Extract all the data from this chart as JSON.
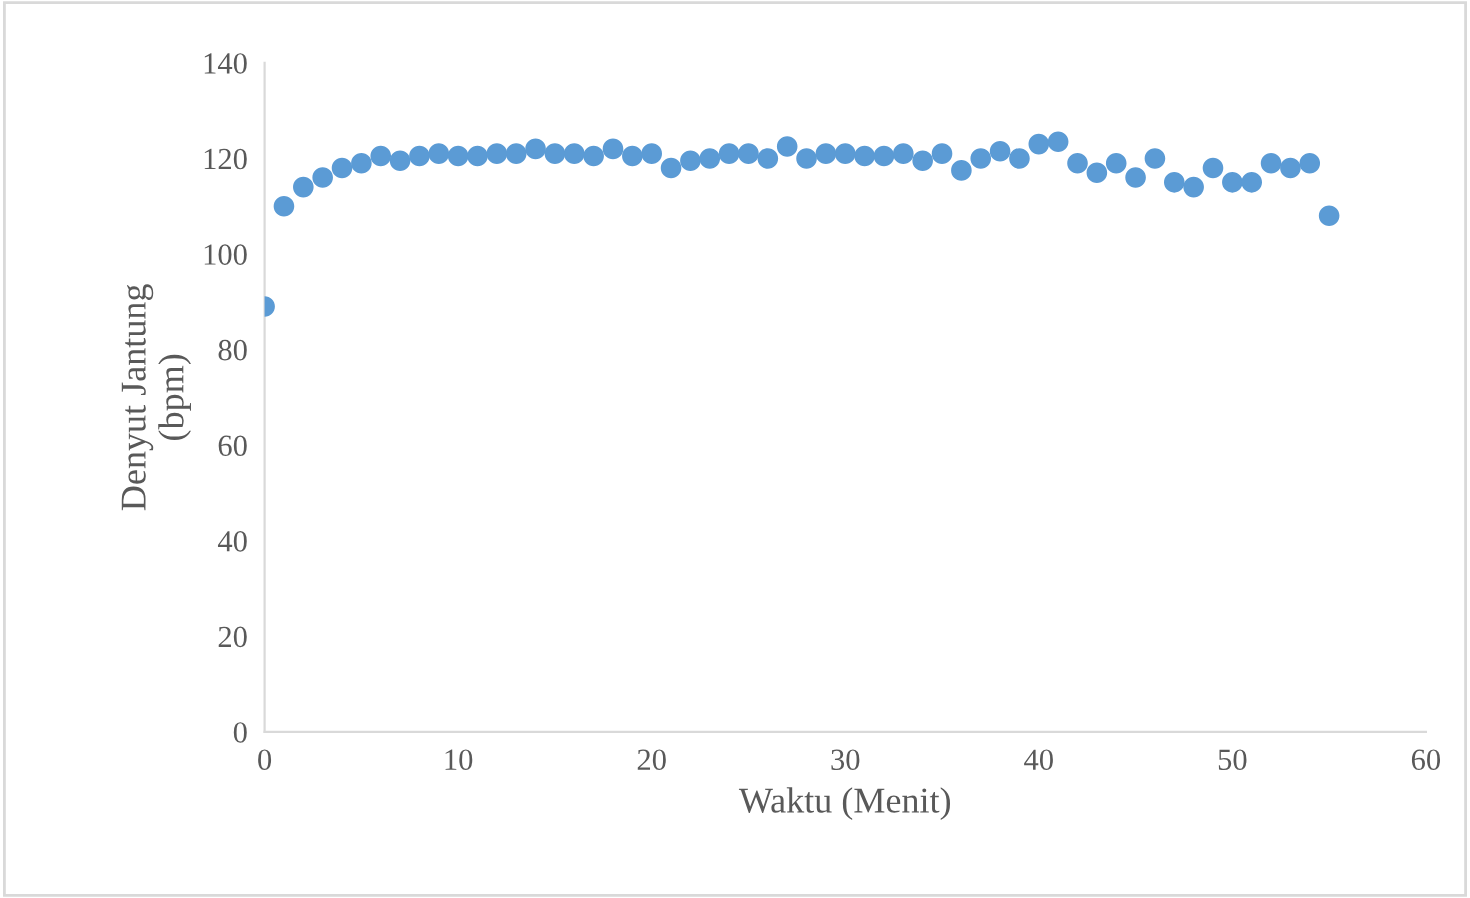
{
  "chart_data": {
    "type": "scatter",
    "xlabel": "Waktu (Menit)",
    "ylabel": "Denyut Jantung\n(bpm)",
    "x": [
      0,
      1,
      2,
      3,
      4,
      5,
      6,
      7,
      8,
      9,
      10,
      11,
      12,
      13,
      14,
      15,
      16,
      17,
      18,
      19,
      20,
      21,
      22,
      23,
      24,
      25,
      26,
      27,
      28,
      29,
      30,
      31,
      32,
      33,
      34,
      35,
      36,
      37,
      38,
      39,
      40,
      41,
      42,
      43,
      44,
      45,
      46,
      47,
      48,
      49,
      50,
      51,
      52,
      53,
      54,
      55
    ],
    "series": [
      {
        "color": "#5b9bd5",
        "values": [
          89,
          110,
          114,
          116,
          118,
          119,
          120.5,
          119.5,
          120.5,
          121,
          120.5,
          120.5,
          121,
          121,
          122,
          121,
          121,
          120.5,
          122,
          120.5,
          121,
          118,
          119.5,
          120,
          121,
          121,
          120,
          122.5,
          120,
          121,
          121,
          120.5,
          120.5,
          121,
          119.5,
          121,
          117.5,
          120,
          121.5,
          120,
          123,
          123.5,
          119,
          117,
          119,
          116,
          120,
          115,
          114,
          118,
          115,
          115,
          119,
          118,
          119,
          108
        ]
      }
    ],
    "xlim": [
      0,
      60
    ],
    "xticks": [
      0,
      10,
      20,
      30,
      40,
      50,
      60
    ],
    "ylim": [
      0,
      140
    ],
    "yticks": [
      0,
      20,
      40,
      60,
      80,
      100,
      120,
      140
    ],
    "marker": "circle",
    "grid": false,
    "legend": false
  }
}
